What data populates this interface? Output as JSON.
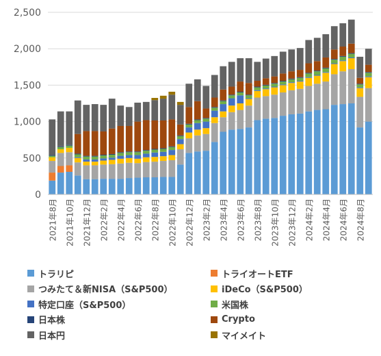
{
  "chart_data": {
    "type": "bar",
    "stacked": true,
    "title": "",
    "xlabel": "",
    "ylabel": "",
    "ylim": [
      0,
      2500
    ],
    "yticks": [
      "0",
      "500",
      "1,000",
      "1,500",
      "2,000",
      "2,500"
    ],
    "grid": true,
    "legend_position": "bottom",
    "categories": [
      "2021年8月",
      "2021年9月",
      "2021年10月",
      "2021年11月",
      "2021年12月",
      "2022年1月",
      "2022年2月",
      "2022年3月",
      "2022年4月",
      "2022年5月",
      "2022年6月",
      "2022年7月",
      "2022年8月",
      "2022年9月",
      "2022年10月",
      "2022年11月",
      "2022年12月",
      "2023年1月",
      "2023年2月",
      "2023年3月",
      "2023年4月",
      "2023年5月",
      "2023年6月",
      "2023年7月",
      "2023年8月",
      "2023年9月",
      "2023年10月",
      "2023年11月",
      "2023年12月",
      "2024年1月",
      "2024年2月",
      "2024年3月",
      "2024年4月",
      "2024年5月",
      "2024年6月",
      "2024年7月",
      "2024年8月",
      "2024年9月"
    ],
    "tick_labels": [
      "2021年8月",
      "2021年10月",
      "2021年12月",
      "2022年2月",
      "2022年4月",
      "2022年6月",
      "2022年8月",
      "2022年10月",
      "2022年12月",
      "2023年2月",
      "2023年4月",
      "2023年6月",
      "2023年8月",
      "2023年10月",
      "2023年12月",
      "2024年2月",
      "2024年4月",
      "2024年6月",
      "2024年8月"
    ],
    "series": [
      {
        "name": "トラリピ",
        "color": "#5B9BD5",
        "values": [
          190,
          300,
          310,
          260,
          210,
          210,
          215,
          215,
          215,
          225,
          230,
          235,
          235,
          240,
          240,
          410,
          570,
          590,
          600,
          720,
          860,
          890,
          900,
          920,
          1020,
          1040,
          1050,
          1080,
          1100,
          1110,
          1140,
          1160,
          1170,
          1230,
          1240,
          1250,
          920,
          1000
        ]
      },
      {
        "name": "トライオートETF",
        "color": "#ED7D31",
        "values": [
          110,
          90,
          90,
          0,
          0,
          0,
          0,
          0,
          0,
          0,
          0,
          0,
          0,
          0,
          0,
          0,
          0,
          0,
          0,
          0,
          0,
          0,
          0,
          0,
          0,
          0,
          0,
          0,
          0,
          0,
          0,
          0,
          0,
          0,
          0,
          0,
          0,
          0
        ]
      },
      {
        "name": "つみたて＆新NISA（S&P500）",
        "color": "#A5A5A5",
        "values": [
          160,
          180,
          180,
          180,
          190,
          190,
          195,
          200,
          210,
          210,
          200,
          210,
          215,
          220,
          230,
          210,
          200,
          220,
          230,
          260,
          200,
          240,
          260,
          300,
          310,
          310,
          320,
          320,
          330,
          340,
          350,
          360,
          380,
          420,
          450,
          470,
          420,
          460
        ]
      },
      {
        "name": "iDeCo（S&P500）",
        "color": "#FFC000",
        "values": [
          50,
          50,
          60,
          60,
          50,
          50,
          55,
          60,
          65,
          65,
          60,
          65,
          65,
          65,
          70,
          70,
          80,
          80,
          80,
          80,
          80,
          90,
          90,
          90,
          90,
          95,
          100,
          100,
          100,
          100,
          110,
          110,
          120,
          140,
          140,
          150,
          120,
          150
        ]
      },
      {
        "name": "特定口座（S&P500）",
        "color": "#4472C4",
        "values": [
          0,
          0,
          0,
          10,
          30,
          30,
          30,
          30,
          40,
          40,
          50,
          50,
          60,
          60,
          70,
          70,
          70,
          90,
          90,
          90,
          100,
          100,
          110,
          10,
          10,
          10,
          10,
          10,
          10,
          10,
          10,
          10,
          10,
          10,
          10,
          10,
          10,
          10
        ]
      },
      {
        "name": "米国株",
        "color": "#70AD47",
        "values": [
          20,
          30,
          30,
          40,
          40,
          40,
          40,
          40,
          40,
          40,
          40,
          40,
          40,
          40,
          40,
          40,
          40,
          40,
          40,
          40,
          40,
          40,
          40,
          40,
          40,
          40,
          40,
          40,
          40,
          40,
          50,
          50,
          50,
          50,
          50,
          50,
          40,
          50
        ]
      },
      {
        "name": "日本株",
        "color": "#264478",
        "values": [
          10,
          10,
          10,
          10,
          10,
          10,
          10,
          10,
          10,
          10,
          10,
          10,
          10,
          10,
          10,
          10,
          10,
          10,
          10,
          10,
          10,
          10,
          10,
          10,
          10,
          10,
          10,
          10,
          10,
          10,
          10,
          10,
          10,
          10,
          10,
          10,
          10,
          10
        ]
      },
      {
        "name": "Crypto",
        "color": "#9E480E",
        "values": [
          0,
          0,
          0,
          270,
          340,
          340,
          320,
          350,
          360,
          350,
          410,
          410,
          390,
          380,
          370,
          150,
          230,
          250,
          130,
          130,
          150,
          110,
          140,
          160,
          80,
          90,
          90,
          100,
          100,
          100,
          130,
          130,
          140,
          130,
          130,
          130,
          80,
          100
        ]
      },
      {
        "name": "日本円",
        "color": "#636363",
        "values": [
          490,
          480,
          460,
          460,
          360,
          370,
          365,
          410,
          280,
          260,
          260,
          250,
          280,
          300,
          340,
          270,
          320,
          300,
          310,
          310,
          320,
          340,
          320,
          340,
          260,
          270,
          280,
          300,
          300,
          300,
          320,
          320,
          320,
          320,
          320,
          330,
          290,
          220
        ]
      },
      {
        "name": "マイメイト",
        "color": "#997300",
        "values": [
          0,
          0,
          0,
          0,
          0,
          0,
          0,
          0,
          0,
          0,
          0,
          0,
          30,
          40,
          40,
          40,
          0,
          0,
          0,
          0,
          0,
          0,
          0,
          0,
          0,
          0,
          0,
          0,
          0,
          0,
          0,
          0,
          0,
          0,
          0,
          0,
          0,
          0
        ]
      }
    ]
  },
  "legend": {
    "items": [
      {
        "label": "トラリピ",
        "color": "#5B9BD5"
      },
      {
        "label": "トライオートETF",
        "color": "#ED7D31"
      },
      {
        "label": "つみたて＆新NISA（S&P500）",
        "color": "#A5A5A5"
      },
      {
        "label": "iDeCo（S&P500）",
        "color": "#FFC000"
      },
      {
        "label": "特定口座（S&P500）",
        "color": "#4472C4"
      },
      {
        "label": "米国株",
        "color": "#70AD47"
      },
      {
        "label": "日本株",
        "color": "#264478"
      },
      {
        "label": "Crypto",
        "color": "#9E480E"
      },
      {
        "label": "日本円",
        "color": "#636363"
      },
      {
        "label": "マイメイト",
        "color": "#997300"
      }
    ]
  }
}
